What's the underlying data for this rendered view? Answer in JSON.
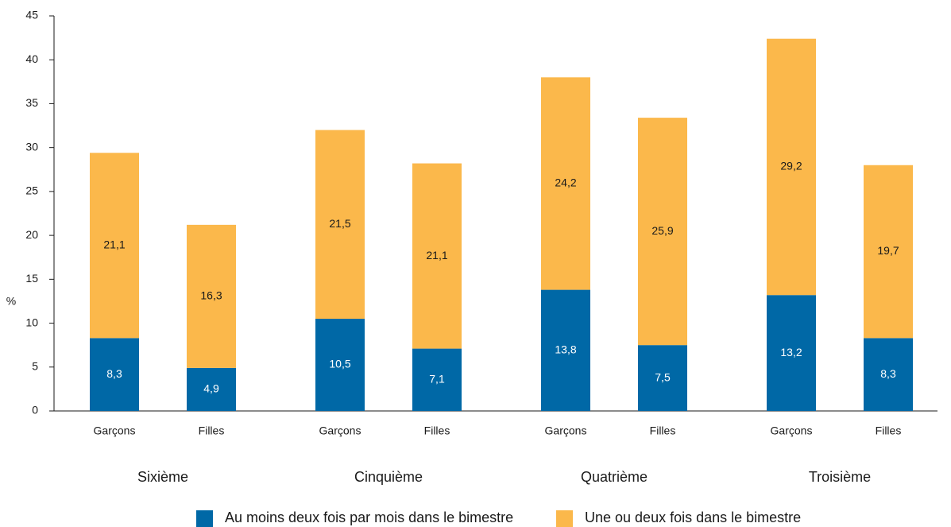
{
  "chart_data": {
    "type": "stacked_bar",
    "ylabel": "%",
    "categories": [
      "Garçons",
      "Filles",
      "Garçons",
      "Filles",
      "Garçons",
      "Filles",
      "Garçons",
      "Filles"
    ],
    "groups": [
      "Sixième",
      "Cinquième",
      "Quatrième",
      "Troisième"
    ],
    "series": [
      {
        "name": "Au moins deux fois par mois dans le bimestre",
        "color": "#0068a6",
        "values": [
          8.3,
          4.9,
          10.5,
          7.1,
          13.8,
          7.5,
          13.2,
          8.3
        ],
        "value_labels": [
          "8,3",
          "4,9",
          "10,5",
          "7,1",
          "13,8",
          "7,5",
          "13,2",
          "8,3"
        ]
      },
      {
        "name": "Une ou deux fois dans le bimestre",
        "color": "#fbb84b",
        "values": [
          21.1,
          16.3,
          21.5,
          21.1,
          24.2,
          25.9,
          29.2,
          19.7
        ],
        "value_labels": [
          "21,1",
          "16,3",
          "21,5",
          "21,1",
          "24,2",
          "25,9",
          "29,2",
          "19,7"
        ]
      }
    ],
    "ylim": [
      0,
      45
    ],
    "yticks": [
      0,
      5,
      10,
      15,
      20,
      25,
      30,
      35,
      40,
      45
    ],
    "grid": false
  }
}
